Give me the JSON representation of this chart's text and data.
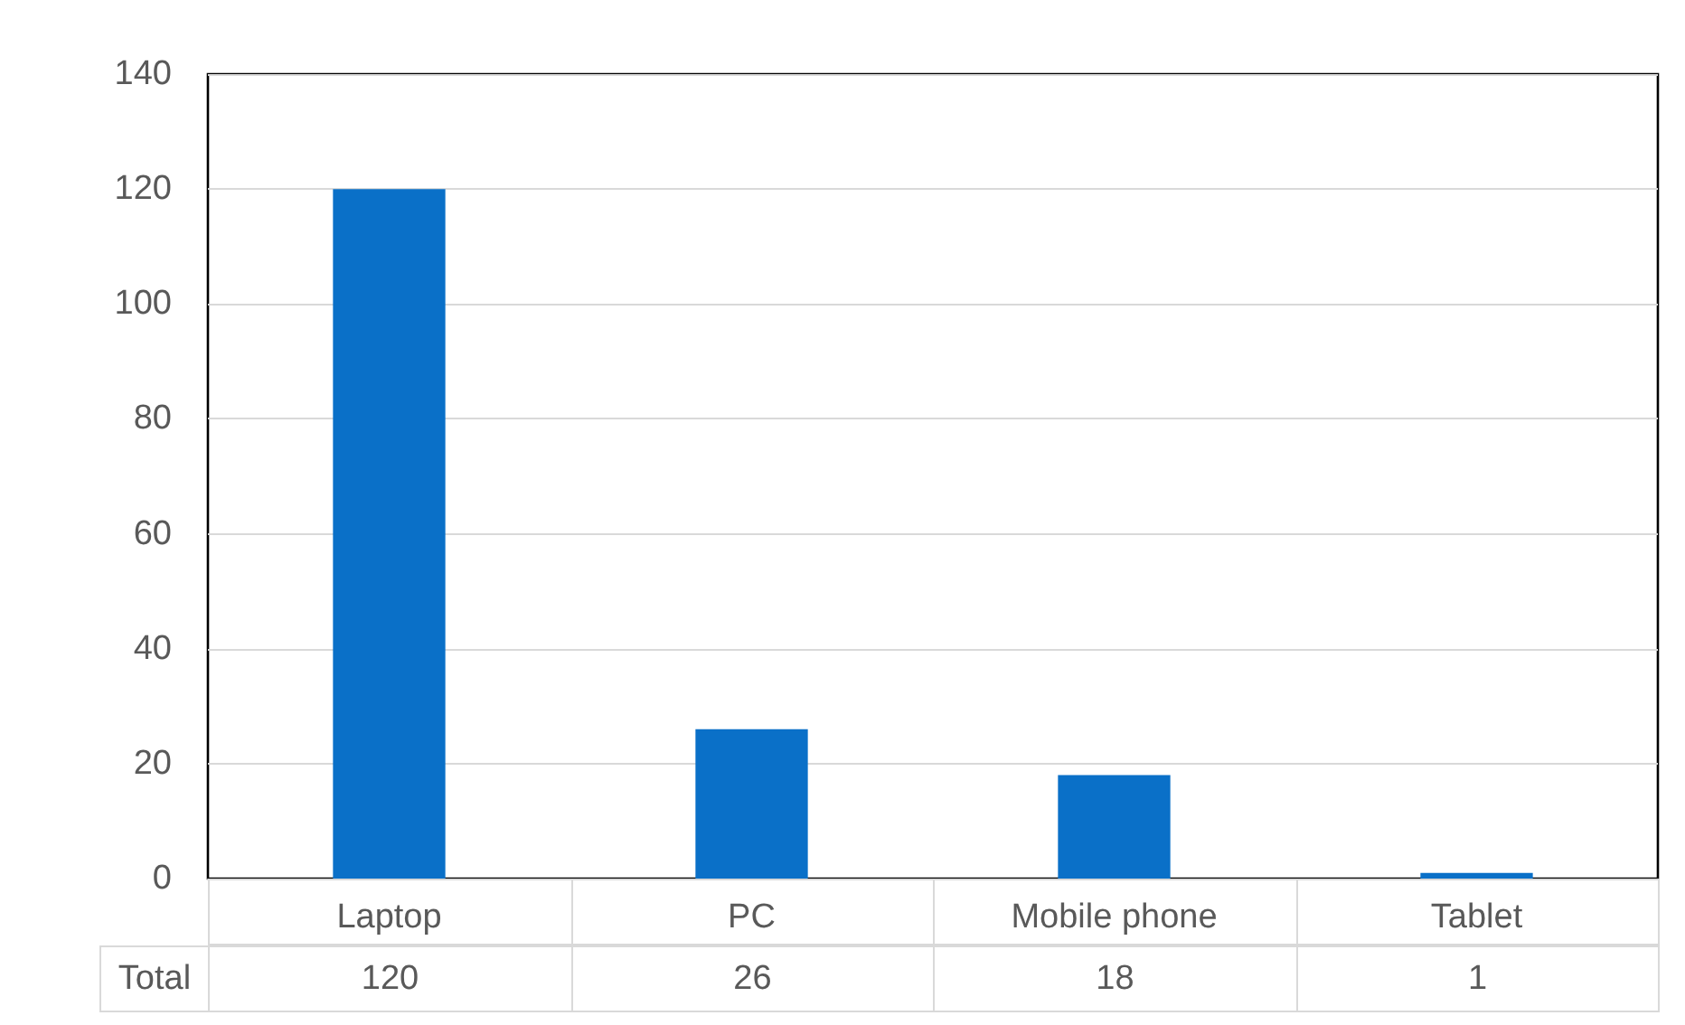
{
  "chart_data": {
    "type": "bar",
    "categories": [
      "Laptop",
      "PC",
      "Mobile phone",
      "Tablet"
    ],
    "series": [
      {
        "name": "Total",
        "color": "#0a70c8",
        "values": [
          120,
          26,
          18,
          1
        ]
      }
    ],
    "ylim": [
      0,
      140
    ],
    "yticks": [
      0,
      20,
      40,
      60,
      80,
      100,
      120,
      140
    ],
    "grid": "y",
    "data_labels": true,
    "legend": false
  }
}
